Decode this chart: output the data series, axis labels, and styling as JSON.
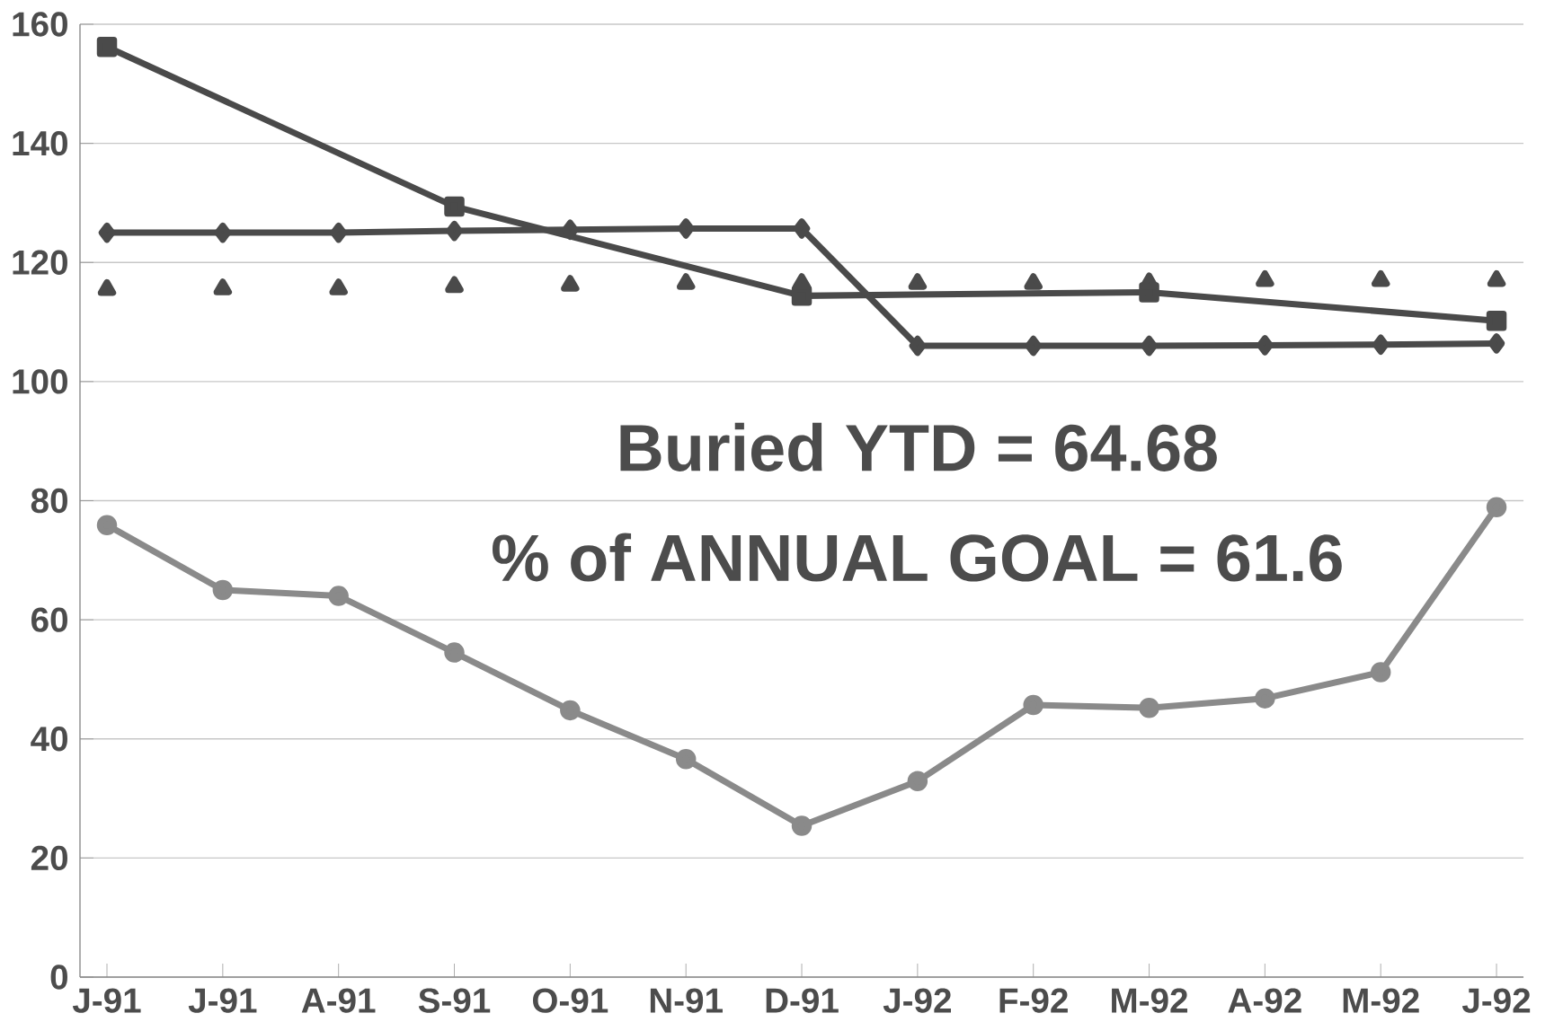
{
  "chart_data": {
    "type": "line",
    "categories": [
      "J-91",
      "J-91",
      "A-91",
      "S-91",
      "O-91",
      "N-91",
      "D-91",
      "J-92",
      "F-92",
      "M-92",
      "A-92",
      "M-92",
      "J-92"
    ],
    "series": [
      {
        "color": "#4a4a4a",
        "marker": "square",
        "values": [
          156.2,
          null,
          null,
          129.4,
          null,
          null,
          114.4,
          null,
          null,
          115,
          null,
          null,
          110.2
        ]
      },
      {
        "color": "#4a4a4a",
        "marker": "diamond",
        "values": [
          125,
          125,
          125,
          125.3,
          125.5,
          125.7,
          125.7,
          106,
          106,
          106,
          106.1,
          106.2,
          106.4
        ]
      },
      {
        "type": "scatter",
        "color": "#4a4a4a",
        "marker": "triangle",
        "values": [
          115.5,
          115.6,
          115.6,
          116,
          116.2,
          116.5,
          116.5,
          116.5,
          116.5,
          116.6,
          117,
          117,
          117
        ]
      },
      {
        "color": "#8a8a8a",
        "marker": "circle",
        "values": [
          75.9,
          65,
          64,
          54.5,
          44.8,
          36.6,
          25.4,
          32.9,
          45.7,
          45.2,
          46.8,
          51.2,
          78.9
        ]
      }
    ],
    "ylim": [
      0,
      160
    ],
    "yticks": [
      0,
      20,
      40,
      60,
      80,
      100,
      120,
      140,
      160
    ],
    "grid": "y",
    "annotations": [
      "Buried YTD = 64.68",
      "% of ANNUAL GOAL = 61.6"
    ]
  }
}
